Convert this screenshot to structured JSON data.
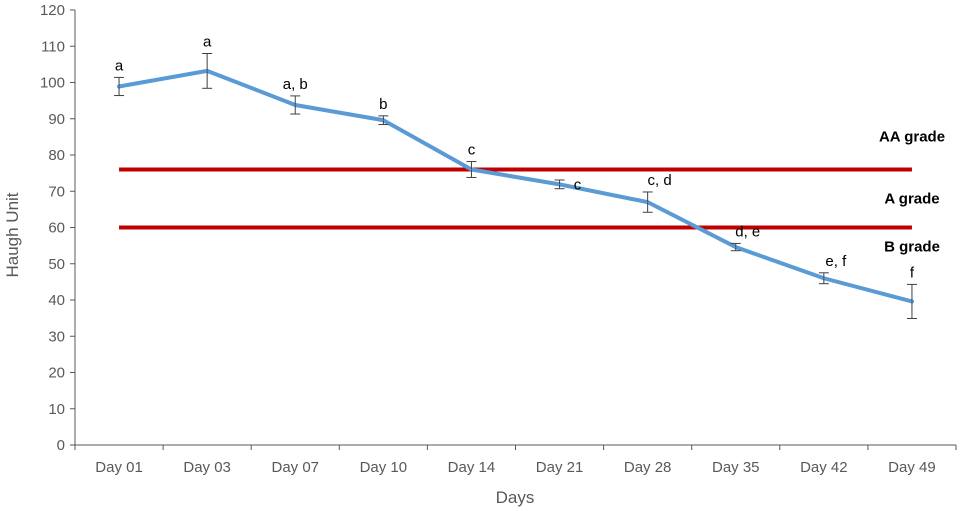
{
  "chart_data": {
    "type": "line",
    "title": "",
    "xlabel": "Days",
    "ylabel": "Haugh Unit",
    "ylim": [
      0,
      120
    ],
    "y_ticks": [
      0,
      10,
      20,
      30,
      40,
      50,
      60,
      70,
      80,
      90,
      100,
      110,
      120
    ],
    "grid": false,
    "categories": [
      "Day 01",
      "Day 03",
      "Day 07",
      "Day 10",
      "Day 14",
      "Day 21",
      "Day 28",
      "Day 35",
      "Day 42",
      "Day 49"
    ],
    "series": [
      {
        "values": [
          98.9,
          103.2,
          93.8,
          89.6,
          76.0,
          71.9,
          67.0,
          54.6,
          46.0,
          39.6
        ],
        "errors": [
          2.5,
          4.8,
          2.5,
          1.2,
          2.2,
          1.2,
          2.8,
          1.0,
          1.5,
          4.7
        ],
        "sig_labels": [
          "a",
          "a",
          "a, b",
          "b",
          "c",
          "c",
          "c, d",
          "d, e",
          "e, f",
          "f"
        ],
        "color": "#5B9BD5"
      }
    ],
    "grade_lines": [
      {
        "value": 76,
        "color": "#C00000"
      },
      {
        "value": 60,
        "color": "#C00000"
      }
    ],
    "grade_labels": [
      "AA grade",
      "A grade",
      "B grade"
    ]
  }
}
